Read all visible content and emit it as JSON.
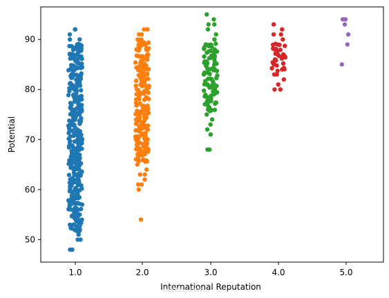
{
  "chart_data": {
    "type": "scatter",
    "subtype": "stripplot",
    "xlabel": "International Reputation",
    "ylabel": "Potential",
    "categories": [
      "1.0",
      "2.0",
      "3.0",
      "4.0",
      "5.0"
    ],
    "y_ticks": [
      50,
      60,
      70,
      80,
      90
    ],
    "ylim": [
      45.5,
      96.5
    ],
    "grid": false,
    "colors": [
      "#1f77b4",
      "#ff7f0e",
      "#2ca02c",
      "#d62728",
      "#9467bd"
    ],
    "series": [
      {
        "category": "1.0",
        "y_min": 48,
        "y_max": 92,
        "dense_range": [
          52,
          89
        ],
        "sparse_values": [
          48,
          48,
          50,
          50,
          51,
          52,
          52,
          53,
          53,
          54,
          54,
          55,
          88,
          89,
          90,
          90,
          91,
          92,
          92
        ]
      },
      {
        "category": "2.0",
        "y_min": 54,
        "y_max": 92,
        "dense_range": [
          66,
          89
        ],
        "sparse_values": [
          54,
          60,
          61,
          61,
          62,
          63,
          63,
          64,
          65,
          66,
          67,
          68,
          88,
          89,
          90,
          90,
          91,
          91,
          92,
          92
        ]
      },
      {
        "category": "3.0",
        "y_min": 68,
        "y_max": 95,
        "dense_range": [
          76,
          89
        ],
        "sparse_values": [
          68,
          68,
          71,
          72,
          73,
          74,
          75,
          88,
          89,
          90,
          91,
          92,
          93,
          93,
          94,
          95
        ]
      },
      {
        "category": "4.0",
        "y_min": 80,
        "y_max": 93,
        "dense_range": [
          84,
          89
        ],
        "sparse_values": [
          80,
          80,
          81,
          82,
          83,
          83,
          84,
          85,
          86,
          87,
          88,
          89,
          90,
          91,
          91,
          92,
          93
        ]
      },
      {
        "category": "5.0",
        "y_min": 85,
        "y_max": 94,
        "dense_range": null,
        "sparse_values": [
          85,
          89,
          91,
          93,
          94,
          94
        ]
      }
    ],
    "watermark": "نفطة\nnafezly.com"
  }
}
